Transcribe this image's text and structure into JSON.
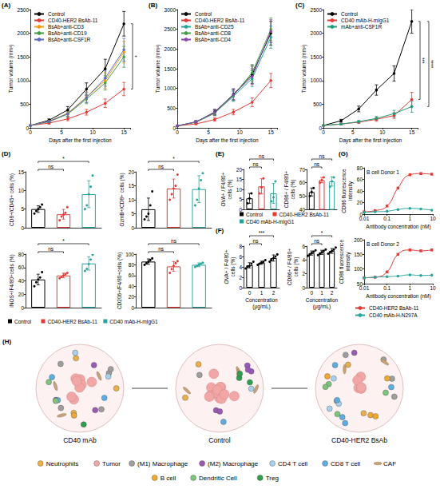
{
  "chart_data": [
    {
      "panel": "(A)",
      "type": "line",
      "x_label": "Days after the first injection",
      "y_label": "Tumor volume (mm³)",
      "x": [
        0,
        3,
        6,
        9,
        12,
        15
      ],
      "xlim": [
        0,
        16
      ],
      "xticks": [
        0,
        5,
        10,
        15
      ],
      "ylim": [
        0,
        2500
      ],
      "yticks": [
        0,
        500,
        1000,
        1500,
        2000,
        2500
      ],
      "grid": false,
      "legend": "top-left",
      "marker": "circle",
      "line_style": "solid",
      "series": [
        {
          "name": "Control",
          "color": "#000000",
          "values": [
            50,
            160,
            380,
            820,
            1250,
            2200
          ],
          "errors": [
            10,
            30,
            70,
            130,
            200,
            260
          ]
        },
        {
          "name": "CD40-HER2 BsAb-11",
          "color": "#e53935",
          "values": [
            50,
            100,
            190,
            330,
            520,
            820
          ],
          "errors": [
            10,
            20,
            40,
            60,
            90,
            140
          ]
        },
        {
          "name": "BsAb+anti-CD3",
          "color": "#f39c12",
          "values": [
            50,
            140,
            310,
            650,
            1000,
            1600
          ],
          "errors": [
            10,
            25,
            60,
            110,
            160,
            230
          ]
        },
        {
          "name": "BsAb+anti-CD19",
          "color": "#43a047",
          "values": [
            50,
            130,
            290,
            610,
            950,
            1500
          ],
          "errors": [
            10,
            25,
            55,
            100,
            150,
            220
          ]
        },
        {
          "name": "BsAb+anti-CSF1R",
          "color": "#5c6bc0",
          "values": [
            50,
            135,
            300,
            640,
            1050,
            1650
          ],
          "errors": [
            10,
            25,
            60,
            110,
            170,
            240
          ]
        }
      ],
      "annotations": [
        {
          "between": [
            "Control",
            "CD40-HER2 BsAb-11"
          ],
          "text": "*"
        }
      ]
    },
    {
      "panel": "(B)",
      "type": "line",
      "x_label": "Days after the first injection",
      "y_label": "Tumor volume (mm³)",
      "x": [
        0,
        3,
        6,
        9,
        12,
        15
      ],
      "xlim": [
        0,
        16
      ],
      "xticks": [
        0,
        5,
        10,
        15
      ],
      "ylim": [
        0,
        3000
      ],
      "yticks": [
        0,
        500,
        1000,
        1500,
        2000,
        2500,
        3000
      ],
      "grid": false,
      "legend": "top-left",
      "marker": "circle",
      "line_style": "solid",
      "series": [
        {
          "name": "Control",
          "color": "#000000",
          "values": [
            50,
            150,
            400,
            850,
            1350,
            2400
          ],
          "errors": [
            10,
            30,
            70,
            140,
            220,
            300
          ]
        },
        {
          "name": "CD40-HER2 BsAb-11",
          "color": "#e53935",
          "values": [
            50,
            100,
            210,
            400,
            650,
            1200
          ],
          "errors": [
            10,
            20,
            40,
            70,
            110,
            180
          ]
        },
        {
          "name": "BsAb+anti-CD25",
          "color": "#26a69a",
          "values": [
            50,
            150,
            380,
            800,
            1250,
            2300
          ],
          "errors": [
            10,
            30,
            65,
            130,
            200,
            280
          ]
        },
        {
          "name": "BsAb+anti-CD8",
          "color": "#43a047",
          "values": [
            50,
            140,
            370,
            820,
            1400,
            2500
          ],
          "errors": [
            10,
            30,
            65,
            130,
            210,
            290
          ]
        },
        {
          "name": "BsAb+anti-CD4",
          "color": "#8e44ad",
          "values": [
            50,
            150,
            390,
            840,
            1300,
            2450
          ],
          "errors": [
            10,
            30,
            70,
            135,
            200,
            290
          ]
        }
      ]
    },
    {
      "panel": "(C)",
      "type": "line",
      "x_label": "Days after the first injection",
      "y_label": "Tumor volume (mm³)",
      "x": [
        0,
        3,
        6,
        9,
        12,
        15
      ],
      "xlim": [
        0,
        16
      ],
      "xticks": [
        0,
        5,
        10,
        15
      ],
      "ylim": [
        0,
        2500
      ],
      "yticks": [
        0,
        500,
        1000,
        1500,
        2000,
        2500
      ],
      "grid": false,
      "legend": "top-left",
      "marker": "circle",
      "line_style": "solid",
      "series": [
        {
          "name": "Control",
          "color": "#000000",
          "values": [
            50,
            150,
            400,
            800,
            1150,
            2250
          ],
          "errors": [
            10,
            30,
            60,
            110,
            160,
            250
          ]
        },
        {
          "name": "CD40 mAb-H-mIgG1",
          "color": "#e53935",
          "values": [
            50,
            80,
            120,
            180,
            260,
            600
          ],
          "errors": [
            10,
            15,
            25,
            40,
            60,
            150
          ]
        },
        {
          "name": "mAb+anti-CSF1R",
          "color": "#1b9e77",
          "values": [
            50,
            80,
            130,
            200,
            300,
            450
          ],
          "errors": [
            10,
            15,
            25,
            40,
            70,
            120
          ]
        }
      ],
      "annotations": [
        {
          "between": [
            "Control",
            "CD40 mAb-H-mIgG1"
          ],
          "text": "***"
        },
        {
          "between": [
            "Control",
            "mAb+anti-CSF1R"
          ],
          "text": "****"
        }
      ]
    },
    {
      "panel": "(D)",
      "type": "bar",
      "y_label": "CD8+/CD45+ cells (%)",
      "categories": [
        "Control",
        "CD40-HER2 BsAb-11",
        "CD40 mAb-H-mIgG1"
      ],
      "colors": [
        "#000000",
        "#e53935",
        "#26a69a"
      ],
      "values": [
        5,
        3.6,
        9
      ],
      "errors": [
        0.9,
        1.3,
        3.6
      ],
      "points": [
        [
          3.8,
          4.5,
          5,
          5.5,
          6.2
        ],
        [
          2,
          3,
          3.5,
          4,
          5.5
        ],
        [
          5,
          6,
          9,
          11,
          14
        ]
      ],
      "ylim": [
        0,
        15
      ],
      "yticks": [
        0,
        5,
        10,
        15
      ],
      "grid": false,
      "tick_labels": "y",
      "annotations": [
        {
          "between": [
            "Control",
            "CD40-HER2 BsAb-11"
          ],
          "text": "ns"
        },
        {
          "between": [
            "Control",
            "CD40 mAb-H-mIgG1"
          ],
          "text": "*"
        }
      ]
    },
    {
      "type": "bar",
      "y_label": "GzmB+/CD8+ cells (%)",
      "categories": [
        "Control",
        "CD40-HER2 BsAb-11",
        "CD40 mAb-H-mIgG1"
      ],
      "colors": [
        "#000000",
        "#e53935",
        "#26a69a"
      ],
      "values": [
        6.6,
        14,
        13.8
      ],
      "errors": [
        4,
        3.4,
        4.8
      ],
      "points": [
        [
          3,
          4,
          5,
          8,
          13
        ],
        [
          10,
          12,
          14,
          15,
          19
        ],
        [
          8,
          10,
          14,
          17,
          19.5
        ]
      ],
      "ylim": [
        0,
        20
      ],
      "yticks": [
        0,
        5,
        10,
        15,
        20
      ],
      "grid": false,
      "tick_labels": "y",
      "annotations": [
        {
          "between": [
            "Control",
            "CD40-HER2 BsAb-11"
          ],
          "text": "ns"
        },
        {
          "between": [
            "Control",
            "CD40 mAb-H-mIgG1"
          ],
          "text": "*"
        }
      ]
    },
    {
      "type": "bar",
      "y_label": "iNOS+/F4/80+cells (%)",
      "categories": [
        "Control",
        "CD40-HER2 BsAb-11",
        "CD40 mAb-H-mIgG1"
      ],
      "colors": [
        "#000000",
        "#e53935",
        "#26a69a"
      ],
      "values": [
        42,
        48,
        66
      ],
      "errors": [
        8,
        3.5,
        10
      ],
      "points": [
        [
          32,
          38,
          42,
          45,
          53
        ],
        [
          44,
          46,
          48,
          50,
          52
        ],
        [
          55,
          58,
          65,
          72,
          79
        ]
      ],
      "ylim": [
        0,
        80
      ],
      "yticks": [
        0,
        20,
        40,
        60,
        80
      ],
      "grid": false,
      "tick_labels": "y",
      "annotations": [
        {
          "between": [
            "Control",
            "CD40-HER2 BsAb-11"
          ],
          "text": "ns"
        },
        {
          "between": [
            "Control",
            "CD40 mAb-H-mIgG1"
          ],
          "text": "*"
        }
      ]
    },
    {
      "type": "bar",
      "y_label": "CD206+/F4/80+cells (%)",
      "categories": [
        "Control",
        "CD40-HER2 BsAb-11",
        "CD40 mAb-H-mIgG1"
      ],
      "colors": [
        "#000000",
        "#e53935",
        "#26a69a"
      ],
      "values": [
        86,
        77,
        80
      ],
      "errors": [
        5,
        9,
        3.5
      ],
      "points": [
        [
          80,
          83,
          86,
          89,
          92
        ],
        [
          65,
          72,
          78,
          83,
          87
        ],
        [
          76,
          78,
          80,
          82,
          84
        ]
      ],
      "ylim": [
        0,
        100
      ],
      "yticks": [
        0,
        20,
        40,
        60,
        80,
        100
      ],
      "grid": false,
      "tick_labels": "y",
      "legend": "bottom",
      "annotations": [
        {
          "between": [
            "Control",
            "CD40-HER2 BsAb-11"
          ],
          "text": "ns"
        },
        {
          "between": [
            "Control",
            "CD40 mAb-H-mIgG1"
          ],
          "text": "ns"
        }
      ]
    },
    {
      "panel": "(E)",
      "type": "bar",
      "y_label": "OVA+ / F4/80+ cells (%)",
      "categories": [
        "Control",
        "CD40-HER2 BsAb-11",
        "CD40 mAb-H-mIgG1"
      ],
      "colors": [
        "#000000",
        "#e53935",
        "#26a69a"
      ],
      "values": [
        5.5,
        11.5,
        8
      ],
      "errors": [
        2.5,
        3.8,
        5
      ],
      "points": [
        [
          3,
          5.5,
          8
        ],
        [
          8,
          11,
          15.5
        ],
        [
          4,
          6,
          14
        ]
      ],
      "ylim": [
        0,
        20
      ],
      "yticks": [
        0,
        5,
        10,
        15,
        20
      ],
      "grid": false,
      "tick_labels": "y",
      "annotations": [
        {
          "between": [
            "Control",
            "CD40-HER2 BsAb-11"
          ],
          "text": "ns"
        },
        {
          "between": [
            "Control",
            "CD40 mAb-H-mIgG1"
          ],
          "text": "ns"
        }
      ]
    },
    {
      "type": "bar",
      "y_label": "CD86+ / F4/80+ cells (%)",
      "categories": [
        "Control",
        "CD40-HER2 BsAb-11",
        "CD40 mAb-H-mIgG1"
      ],
      "colors": [
        "#000000",
        "#e53935",
        "#26a69a"
      ],
      "values": [
        53,
        62,
        61
      ],
      "errors": [
        3,
        2,
        3.5
      ],
      "points": [
        [
          50,
          53,
          56
        ],
        [
          60,
          62,
          64
        ],
        [
          57,
          61,
          64
        ]
      ],
      "ylim": [
        40,
        70
      ],
      "yticks": [
        40,
        50,
        60,
        70
      ],
      "grid": false,
      "tick_labels": "y",
      "legend": "bottom",
      "annotations": [
        {
          "between": [
            "Control",
            "CD40-HER2 BsAb-11"
          ],
          "text": "ns"
        },
        {
          "between": [
            "Control",
            "CD40 mAb-H-mIgG1"
          ],
          "text": "ns"
        }
      ]
    },
    {
      "panel": "(F)",
      "type": "bar",
      "x_label": "Concentration (μg/mL)",
      "y_label": "OVA+ / F4/80+ cells (%)",
      "categories": [
        "0",
        "1",
        "2"
      ],
      "color": "#000000",
      "values": [
        4.3,
        4.8,
        5.7
      ],
      "errors": [
        0.5,
        0.3,
        0.6
      ],
      "points": [
        [
          3.7,
          4,
          4.2,
          4.6,
          5
        ],
        [
          4.4,
          4.6,
          4.8,
          5,
          5.3
        ],
        [
          5,
          5.3,
          5.7,
          6,
          6.4
        ]
      ],
      "ylim": [
        0,
        8
      ],
      "yticks": [
        0,
        2,
        4,
        6,
        8
      ],
      "grid": false,
      "annotations": [
        {
          "between": [
            "0",
            "1"
          ],
          "text": "ns"
        },
        {
          "between": [
            "0",
            "2"
          ],
          "text": "***"
        }
      ]
    },
    {
      "type": "bar",
      "x_label": "Concentration (μg/mL)",
      "y_label": "CD86+ / F4/80+ cells (%)",
      "categories": [
        "0",
        "1",
        "2"
      ],
      "color": "#000000",
      "values": [
        5,
        5.1,
        5.3
      ],
      "errors": [
        0.3,
        0.3,
        0.35
      ],
      "points": [
        [
          4.6,
          4.8,
          5,
          5.2,
          5.4
        ],
        [
          4.7,
          4.9,
          5.1,
          5.3,
          5.5
        ],
        [
          4.9,
          5.1,
          5.3,
          5.5,
          5.8
        ]
      ],
      "ylim": [
        0,
        6
      ],
      "yticks": [
        0,
        2,
        4,
        6
      ],
      "grid": false,
      "annotations": [
        {
          "between": [
            "0",
            "1"
          ],
          "text": "ns"
        },
        {
          "between": [
            "0",
            "2"
          ],
          "text": "*"
        }
      ]
    },
    {
      "panel": "(G)",
      "type": "line",
      "title": "B cell Donor 1",
      "x_label": "Antibody concentration (nM)",
      "y_label": "CD86 fluorescence intensity",
      "log": "x",
      "x": [
        0.01,
        0.03,
        0.1,
        0.3,
        1,
        3,
        9
      ],
      "xlim": [
        0.01,
        10
      ],
      "xticks": [
        0.01,
        0.1,
        1,
        10
      ],
      "ylim": [
        0,
        80
      ],
      "yticks": [
        0,
        20,
        40,
        60,
        80
      ],
      "grid": false,
      "line_style": "smooth",
      "series": [
        {
          "name": "CD40-HER2 BsAb-11",
          "color": "#e53935",
          "marker": "square",
          "values": [
            4,
            6,
            14,
            45,
            68,
            70,
            69
          ]
        },
        {
          "name": "CD40 mAb-H-N297A",
          "color": "#26a69a",
          "marker": "circle",
          "values": [
            3,
            4,
            5,
            8,
            10,
            9,
            7
          ]
        }
      ]
    },
    {
      "type": "line",
      "title": "B cell Donor 2",
      "x_label": "Antibody concentration (nM)",
      "y_label": "CD86 fluorescence intensity",
      "log": "x",
      "x": [
        0.01,
        0.03,
        0.1,
        0.3,
        1,
        3,
        9
      ],
      "xlim": [
        0.01,
        10
      ],
      "xticks": [
        0.01,
        0.1,
        1,
        10
      ],
      "ylim": [
        50,
        200
      ],
      "yticks": [
        50,
        100,
        150,
        200
      ],
      "grid": false,
      "line_style": "smooth",
      "legend": "bottom",
      "series": [
        {
          "name": "CD40-HER2 BsAb-11",
          "color": "#e53935",
          "marker": "square",
          "values": [
            70,
            72,
            90,
            150,
            165,
            162,
            165
          ]
        },
        {
          "name": "CD40 mAb-H-N297A",
          "color": "#26a69a",
          "marker": "circle",
          "values": [
            70,
            72,
            74,
            76,
            80,
            78,
            79
          ]
        }
      ]
    }
  ],
  "diagram": {
    "panel": "(H)",
    "groups": [
      "CD40 mAb",
      "Control",
      "CD40-HER2 BsAb"
    ],
    "legend": [
      {
        "label": "Neutrophils",
        "color": "#e8b04a"
      },
      {
        "label": "Tumor",
        "color": "#f2a7a7"
      },
      {
        "label": "(M1) Macrophage",
        "color": "#9e9e9e"
      },
      {
        "label": "(M2) Macrophage",
        "color": "#9b59b6"
      },
      {
        "label": "CD4 T cell",
        "color": "#a8d0ec"
      },
      {
        "label": "CD8 T cell",
        "color": "#5dade2"
      },
      {
        "label": "CAF",
        "color": "#c8a27a"
      },
      {
        "label": "B cell",
        "color": "#f0a830"
      },
      {
        "label": "Dendritic Cell",
        "color": "#7cc47c"
      },
      {
        "label": "Treg",
        "color": "#2e9e4f"
      }
    ]
  }
}
